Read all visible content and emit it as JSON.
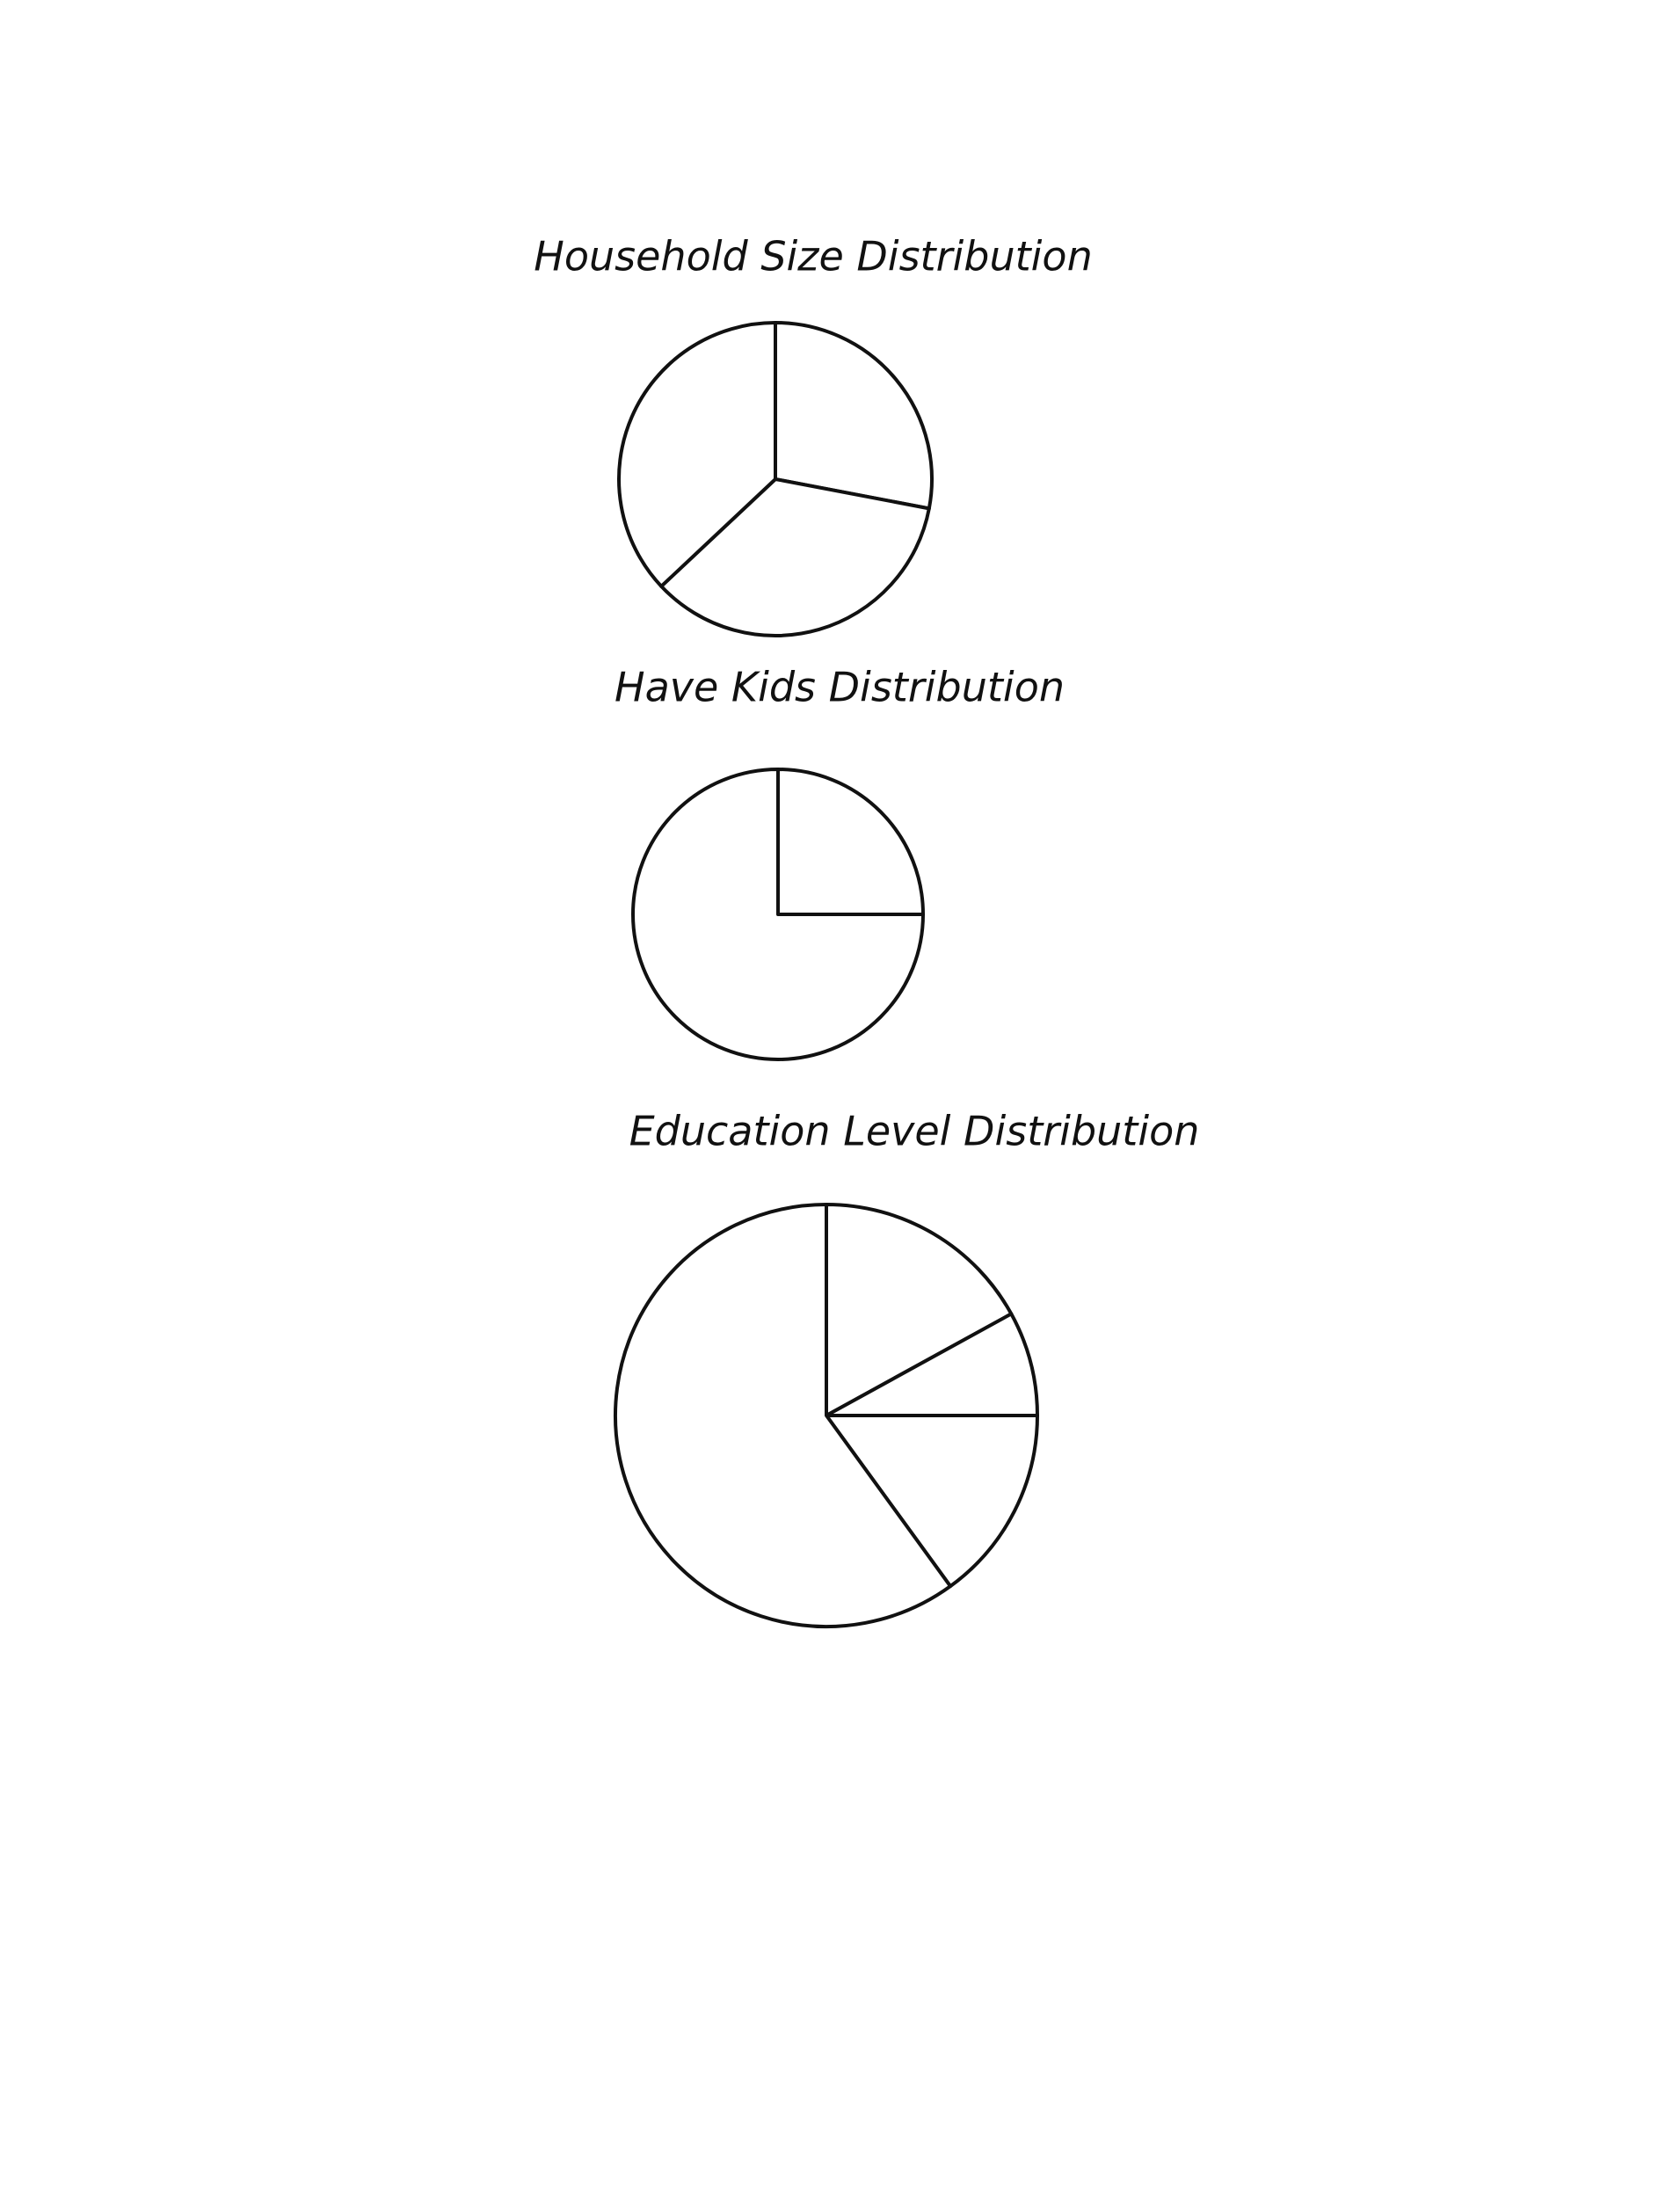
{
  "chart_data": [
    {
      "type": "pie",
      "title": "Household Size Distribution",
      "values": [
        28,
        35,
        37
      ]
    },
    {
      "type": "pie",
      "title": "Have Kids Distribution",
      "values": [
        25,
        75
      ]
    },
    {
      "type": "pie",
      "title": "Education Level Distribution",
      "values": [
        17,
        8,
        15,
        60
      ]
    }
  ]
}
